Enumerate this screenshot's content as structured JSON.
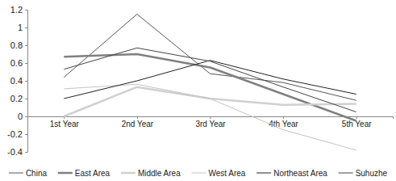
{
  "chart_data": {
    "type": "line",
    "categories": [
      "1st Year",
      "2nd Year",
      "3rd Year",
      "4th Year",
      "5th Year"
    ],
    "series": [
      {
        "name": "China",
        "color": "#555555",
        "values": [
          0.44,
          1.15,
          0.48,
          0.38,
          0.18
        ]
      },
      {
        "name": "East Area",
        "color": "#808080",
        "values": [
          0.67,
          0.7,
          0.55,
          0.25,
          -0.05
        ]
      },
      {
        "name": "Middle Area",
        "color": "#d0d0d0",
        "values": [
          0.0,
          0.33,
          0.2,
          0.13,
          0.14
        ]
      },
      {
        "name": "West Area",
        "color": "#c4c4c4",
        "values": [
          0.31,
          0.36,
          0.2,
          -0.15,
          -0.38
        ]
      },
      {
        "name": "Northeast Area",
        "color": "#222222",
        "values": [
          0.2,
          0.4,
          0.63,
          0.42,
          0.25
        ]
      },
      {
        "name": "Suhuzhe",
        "color": "#444444",
        "values": [
          0.53,
          0.77,
          0.62,
          0.33,
          0.05
        ]
      }
    ],
    "ylim": [
      -0.4,
      1.2
    ],
    "yticks": [
      -0.4,
      -0.2,
      0,
      0.2,
      0.4,
      0.6,
      0.8,
      1,
      1.2
    ],
    "grid": false,
    "legend": "bottom"
  }
}
